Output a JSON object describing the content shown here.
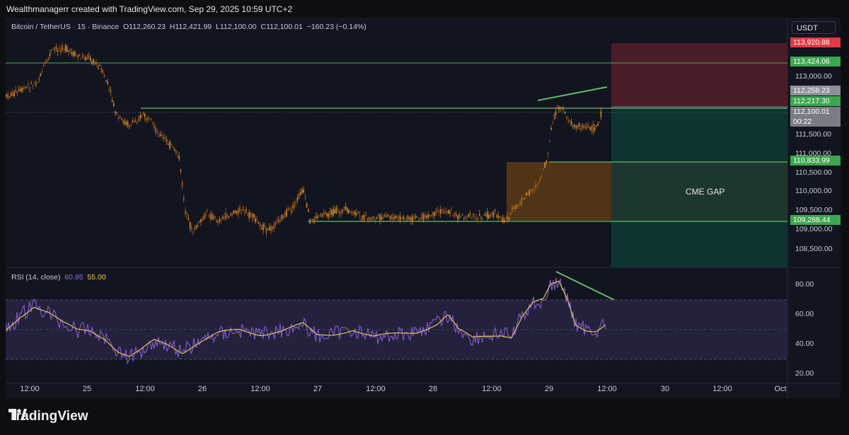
{
  "header": {
    "text": "Wealthmanagerr created with TradingView.com, Sep 29, 2025 10:59 UTC+2"
  },
  "symbol": {
    "name": "Bitcoin / TetherUS · 15 · Binance",
    "o_label": "O",
    "o_value": "112,260.23",
    "h_label": "H",
    "h_value": "112,421.99",
    "l_label": "L",
    "l_value": "112,100.00",
    "c_label": "C",
    "c_value": "112,100.01",
    "change": "−160.23 (−0.14%)"
  },
  "currency": "USDT",
  "price_axis": [
    "113,000.00",
    "111,500.00",
    "111,000.00",
    "110,500.00",
    "110,000.00",
    "109,500.00",
    "109,000.00",
    "108,500.00"
  ],
  "price_tags": {
    "stop": "113,920.88",
    "resistance": "113,424.06",
    "last_high": "112,258.23",
    "level": "112,217.30",
    "last": "112,100.01",
    "countdown": "00:22",
    "gap_top": "110,833.99",
    "gap_bottom": "109,288.44"
  },
  "annotation": {
    "cme_gap": "CME GAP"
  },
  "rsi": {
    "label": "RSI (14, close)",
    "value": "60.95",
    "ma_value": "55.00",
    "axis": [
      "80.00",
      "60.00",
      "40.00",
      "20.00"
    ]
  },
  "time_axis": [
    "12:00",
    "25",
    "12:00",
    "26",
    "12:00",
    "27",
    "12:00",
    "28",
    "12:00",
    "29",
    "12:00",
    "30",
    "12:00",
    "Oct"
  ],
  "brand": {
    "name": "TradingView"
  },
  "colors": {
    "up": "#d4892a",
    "down": "#a8621d",
    "level_line": "#4caf50",
    "stop_zone": "#5a1f2a",
    "target_zone": "#0f3b37",
    "gap_zone": "#6b4418",
    "rsi_line": "#7e57c2",
    "rsi_ma": "#e8d44d"
  }
}
